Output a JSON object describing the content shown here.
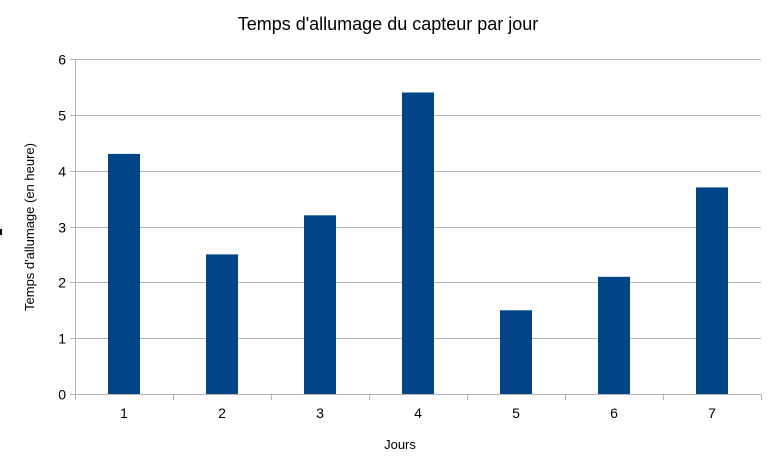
{
  "chart_data": {
    "type": "bar",
    "title": "Temps d'allumage du capteur par jour",
    "xlabel": "Jours",
    "ylabel": "Temps d'allumage (en heure)",
    "categories": [
      "1",
      "2",
      "3",
      "4",
      "5",
      "6",
      "7"
    ],
    "values": [
      4.3,
      2.5,
      3.2,
      5.4,
      1.5,
      2.1,
      3.7
    ],
    "ylim": [
      0,
      6
    ],
    "yticks": [
      "0",
      "1",
      "2",
      "3",
      "4",
      "5",
      "6"
    ],
    "grid": true,
    "legend": "none",
    "colors": {
      "bar": "#004586",
      "grid": "#b3b3b3"
    }
  }
}
